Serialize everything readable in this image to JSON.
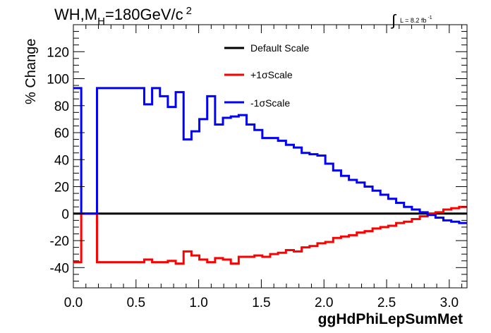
{
  "chart_data": {
    "type": "line",
    "title_main": "WH,M",
    "title_sub": "H",
    "title_rest": "=180GeV/c",
    "title_sup": "2",
    "lumi_label": "L = 8.2 fb",
    "lumi_sup": "-1",
    "ylabel": "% Change",
    "xlabel": "ggHdPhiLepSumMet",
    "xlim": [
      0,
      3.1416
    ],
    "ylim": [
      -55,
      140
    ],
    "xticks": [
      0.0,
      0.5,
      1.0,
      1.5,
      2.0,
      2.5,
      3.0
    ],
    "xtick_labels": [
      "0.0",
      "0.5",
      "1.0",
      "1.5",
      "2.0",
      "2.5",
      "3.0"
    ],
    "yticks": [
      -40,
      -20,
      0,
      20,
      40,
      60,
      80,
      100,
      120
    ],
    "ytick_labels": [
      "-40",
      "-20",
      "0",
      "20",
      "40",
      "60",
      "80",
      "100",
      "120"
    ],
    "grid": false,
    "legend_position": "top-center",
    "bin_edges": [
      0.0,
      0.0628,
      0.1885,
      0.5655,
      0.6283,
      0.6912,
      0.754,
      0.8168,
      0.8796,
      0.9425,
      1.0053,
      1.0681,
      1.131,
      1.1938,
      1.2566,
      1.3195,
      1.3823,
      1.4451,
      1.508,
      1.5708,
      1.6336,
      1.6965,
      1.7593,
      1.8221,
      1.885,
      1.9478,
      2.0106,
      2.0735,
      2.1363,
      2.1991,
      2.2619,
      2.3248,
      2.3876,
      2.4504,
      2.5133,
      2.5761,
      2.6389,
      2.7018,
      2.7646,
      2.8274,
      2.8903,
      2.9531,
      3.0159,
      3.0788,
      3.1416
    ],
    "series": [
      {
        "name": "Default Scale",
        "color": "#000000",
        "values": [
          0,
          0,
          0,
          0,
          0,
          0,
          0,
          0,
          0,
          0,
          0,
          0,
          0,
          0,
          0,
          0,
          0,
          0,
          0,
          0,
          0,
          0,
          0,
          0,
          0,
          0,
          0,
          0,
          0,
          0,
          0,
          0,
          0,
          0,
          0,
          0,
          0,
          0,
          0,
          0,
          0,
          0,
          0,
          0
        ]
      },
      {
        "name": "+1σScale",
        "color": "#ff0000",
        "values": [
          -36,
          0,
          -36,
          -34,
          -36,
          -36,
          -35,
          -37,
          -28,
          -31,
          -34,
          -36,
          -33,
          -34,
          -37,
          -32,
          -32,
          -31,
          -32,
          -30,
          -29,
          -27,
          -28,
          -25,
          -24,
          -22,
          -21,
          -18,
          -17,
          -16,
          -14,
          -13,
          -11,
          -10,
          -9,
          -7,
          -6,
          -4,
          -2,
          0,
          1,
          3,
          4,
          5
        ]
      },
      {
        "name": "-1σScale",
        "color": "#0000ff",
        "values": [
          93,
          0,
          93,
          81,
          93,
          87,
          79,
          90,
          55,
          61,
          70,
          87,
          66,
          71,
          72,
          73,
          66,
          62,
          56,
          56,
          54,
          51,
          49,
          45,
          44,
          43,
          37,
          32,
          28,
          25,
          23,
          20,
          17,
          14,
          11,
          8,
          5,
          3,
          1,
          -1,
          -3,
          -5,
          -6,
          -7
        ]
      }
    ]
  }
}
